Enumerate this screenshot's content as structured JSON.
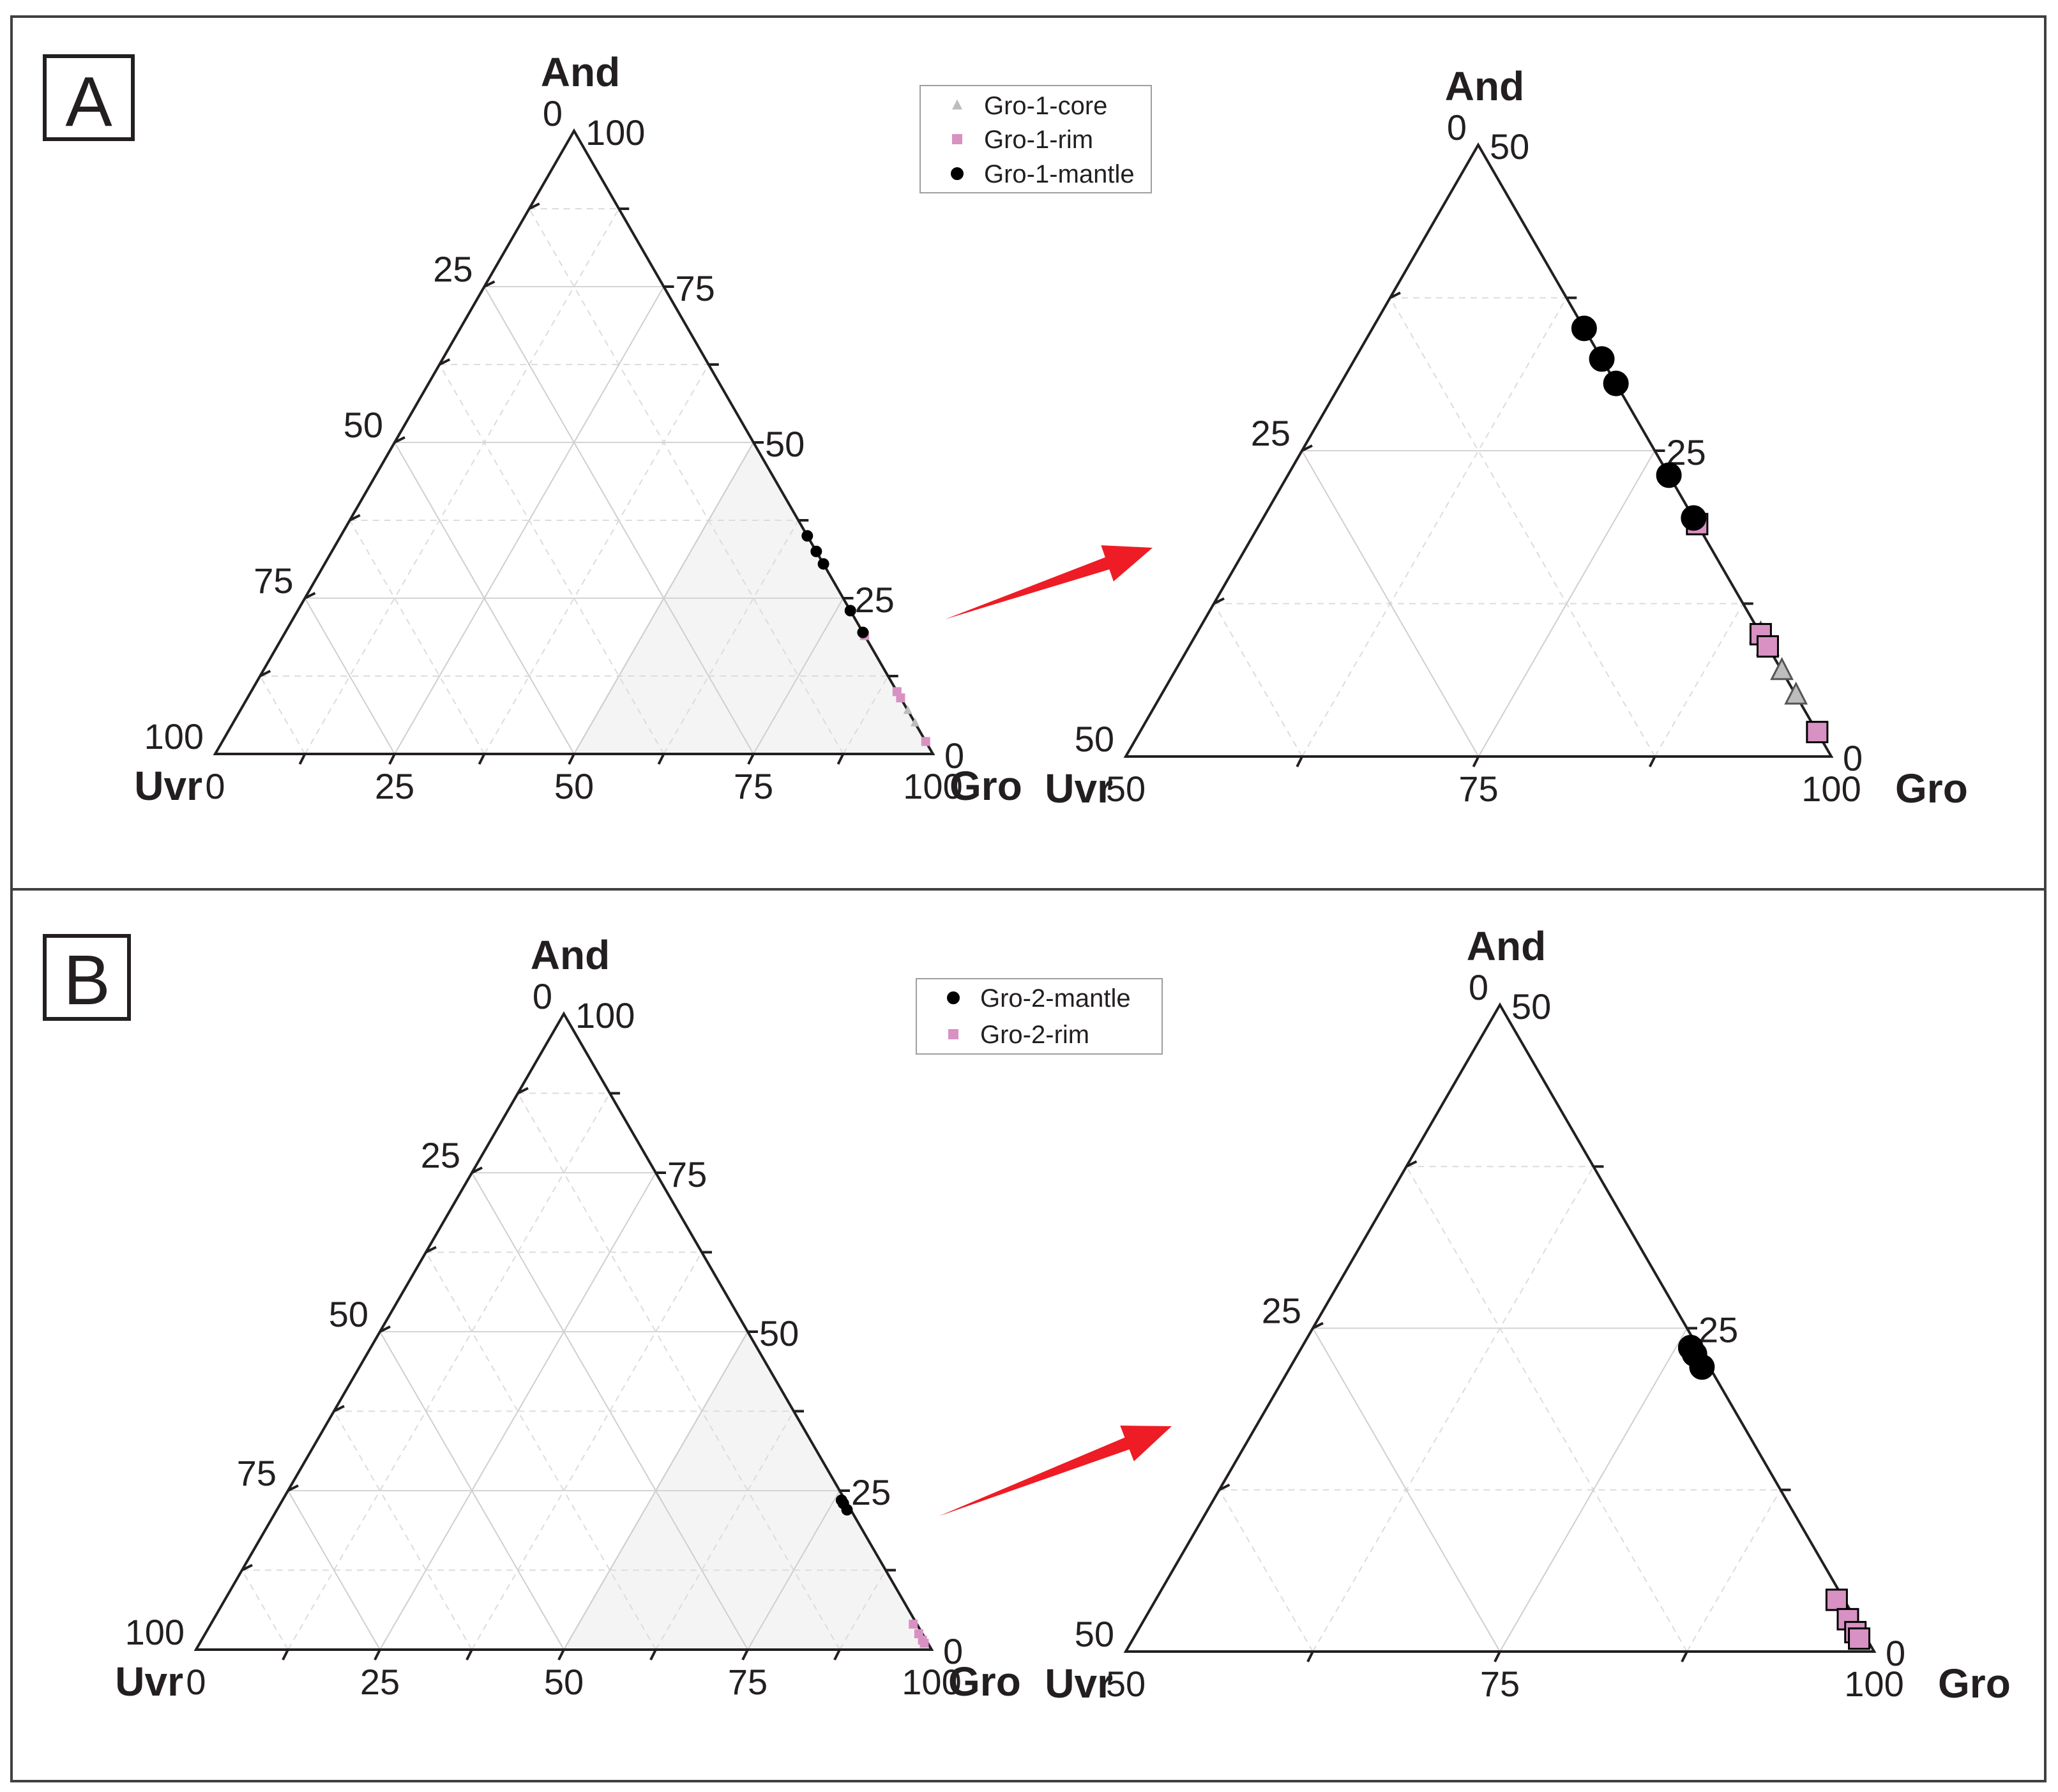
{
  "colors": {
    "frame": "#404040",
    "axis": "#231f20",
    "grid": "#cfcfcf",
    "zoom_region_fill": "#f4f4f4",
    "zoom_region_edge": "#e8b8c8",
    "arrow": "#ee1c25",
    "core_marker": "#bdbdbd",
    "rim_marker": "#d891c3",
    "mantle_marker": "#000000"
  },
  "chart_data": [
    {
      "panel": "A",
      "view": "full",
      "type": "scatter",
      "subtype": "ternary",
      "vertex_labels": {
        "top": "And",
        "left": "Uvr",
        "right": "Gro"
      },
      "axis_range": [
        0,
        100
      ],
      "tick_values": [
        0,
        25,
        50,
        75,
        100
      ],
      "tick_labels": {
        "left_edge": [
          "0",
          "25",
          "50",
          "75",
          "100"
        ],
        "right_edge": [
          "100",
          "75",
          "50",
          "25",
          "0"
        ],
        "bottom_edge": [
          "0",
          "25",
          "50",
          "75",
          "100"
        ]
      },
      "legend": "top-right",
      "series": [
        {
          "name": "Gro-1-core",
          "marker": "triangle",
          "color": "#bdbdbd",
          "points": [
            {
              "And": 10,
              "Gro": 90,
              "Uvr": 0
            },
            {
              "And": 9,
              "Gro": 91,
              "Uvr": 0
            },
            {
              "And": 7,
              "Gro": 93,
              "Uvr": 0
            },
            {
              "And": 5,
              "Gro": 95,
              "Uvr": 0
            }
          ]
        },
        {
          "name": "Gro-1-rim",
          "marker": "square",
          "color": "#d891c3",
          "points": [
            {
              "And": 19,
              "Gro": 81,
              "Uvr": 0
            },
            {
              "And": 10,
              "Gro": 90,
              "Uvr": 0
            },
            {
              "And": 9,
              "Gro": 91,
              "Uvr": 0
            },
            {
              "And": 2,
              "Gro": 98,
              "Uvr": 0
            }
          ]
        },
        {
          "name": "Gro-1-mantle",
          "marker": "circle",
          "color": "#000000",
          "points": [
            {
              "And": 35,
              "Gro": 65,
              "Uvr": 0
            },
            {
              "And": 32.5,
              "Gro": 67.5,
              "Uvr": 0
            },
            {
              "And": 30.5,
              "Gro": 69.5,
              "Uvr": 0
            },
            {
              "And": 23,
              "Gro": 77,
              "Uvr": 0
            },
            {
              "And": 19.5,
              "Gro": 80.5,
              "Uvr": 0
            }
          ]
        }
      ]
    },
    {
      "panel": "A",
      "view": "zoom",
      "type": "scatter",
      "subtype": "ternary",
      "vertex_labels": {
        "top": "And",
        "left": "Uvr",
        "right": "Gro"
      },
      "axis_range": [
        0,
        50
      ],
      "tick_labels": {
        "left_edge": [
          "0",
          "25",
          "50"
        ],
        "right_edge": [
          "50",
          "25",
          "0"
        ],
        "bottom_edge": [
          "50",
          "75",
          "100"
        ]
      },
      "series_ref": [
        "Gro-1-core",
        "Gro-1-rim",
        "Gro-1-mantle"
      ]
    },
    {
      "panel": "B",
      "view": "full",
      "type": "scatter",
      "subtype": "ternary",
      "vertex_labels": {
        "top": "And",
        "left": "Uvr",
        "right": "Gro"
      },
      "axis_range": [
        0,
        100
      ],
      "tick_labels": {
        "left_edge": [
          "0",
          "25",
          "50",
          "75",
          "100"
        ],
        "right_edge": [
          "100",
          "75",
          "50",
          "25",
          "0"
        ],
        "bottom_edge": [
          "0",
          "25",
          "50",
          "75",
          "100"
        ]
      },
      "legend": "top-right",
      "series": [
        {
          "name": "Gro-2-mantle",
          "marker": "circle",
          "color": "#000000",
          "points": [
            {
              "And": 23.5,
              "Gro": 76,
              "Uvr": 0.5
            },
            {
              "And": 23,
              "Gro": 76.5,
              "Uvr": 0.5
            },
            {
              "And": 22,
              "Gro": 77.5,
              "Uvr": 0.5
            }
          ]
        },
        {
          "name": "Gro-2-rim",
          "marker": "square",
          "color": "#d891c3",
          "points": [
            {
              "And": 4,
              "Gro": 95.5,
              "Uvr": 0.5
            },
            {
              "And": 2.5,
              "Gro": 97,
              "Uvr": 0.5
            },
            {
              "And": 1.5,
              "Gro": 98,
              "Uvr": 0.5
            },
            {
              "And": 1,
              "Gro": 98.5,
              "Uvr": 0.5
            }
          ]
        }
      ]
    },
    {
      "panel": "B",
      "view": "zoom",
      "type": "scatter",
      "subtype": "ternary",
      "vertex_labels": {
        "top": "And",
        "left": "Uvr",
        "right": "Gro"
      },
      "axis_range": [
        0,
        50
      ],
      "tick_labels": {
        "left_edge": [
          "0",
          "25",
          "50"
        ],
        "right_edge": [
          "50",
          "25",
          "0"
        ],
        "bottom_edge": [
          "50",
          "75",
          "100"
        ]
      },
      "series_ref": [
        "Gro-2-mantle",
        "Gro-2-rim"
      ]
    }
  ],
  "panels": [
    {
      "letter": "A",
      "legend": [
        "Gro-1-core",
        "Gro-1-rim",
        "Gro-1-mantle"
      ]
    },
    {
      "letter": "B",
      "legend": [
        "Gro-2-mantle",
        "Gro-2-rim"
      ]
    }
  ]
}
